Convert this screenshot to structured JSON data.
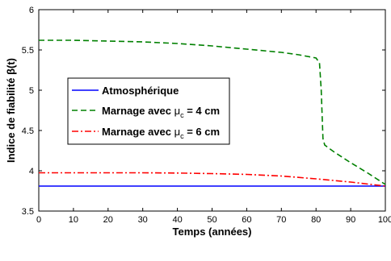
{
  "chart_data": {
    "type": "line",
    "xlabel": "Temps (années)",
    "ylabel": "Indice de fiabilité β(t)",
    "xlim": [
      0,
      100
    ],
    "ylim": [
      3.5,
      6
    ],
    "xticks": [
      0,
      10,
      20,
      30,
      40,
      50,
      60,
      70,
      80,
      90,
      100
    ],
    "yticks": [
      3.5,
      4,
      4.5,
      5,
      5.5,
      6
    ],
    "ytick_labels": [
      "3.5",
      "4",
      "4.5",
      "5",
      "5.5",
      "6"
    ],
    "grid": false,
    "legend_position": "left",
    "series": [
      {
        "name": "Atmosphérique",
        "color": "#0000ff",
        "dash": "solid",
        "x": [
          0,
          100
        ],
        "y": [
          3.81,
          3.81
        ]
      },
      {
        "name": "Marnage avec μc = 4 cm",
        "name_base": "Marnage avec ",
        "name_symbol": "μ",
        "name_sub": "c",
        "name_suffix": " = 4 cm",
        "color": "#008000",
        "dash": "dashed",
        "x": [
          0,
          10,
          20,
          30,
          40,
          50,
          60,
          70,
          75,
          80,
          81,
          81.5,
          82,
          82.5,
          85,
          90,
          95,
          100
        ],
        "y": [
          5.62,
          5.62,
          5.61,
          5.6,
          5.58,
          5.55,
          5.51,
          5.47,
          5.44,
          5.4,
          5.34,
          5.0,
          4.4,
          4.32,
          4.24,
          4.1,
          3.97,
          3.83
        ]
      },
      {
        "name": "Marnage avec μc = 6 cm",
        "name_base": "Marnage avec ",
        "name_symbol": "μ",
        "name_sub": "c",
        "name_suffix": " = 6 cm",
        "color": "#ff0000",
        "dash": "dashdot",
        "x": [
          0,
          10,
          20,
          30,
          40,
          50,
          60,
          70,
          80,
          85,
          90,
          95,
          100
        ],
        "y": [
          3.975,
          3.975,
          3.975,
          3.975,
          3.972,
          3.965,
          3.955,
          3.935,
          3.9,
          3.88,
          3.86,
          3.835,
          3.81
        ]
      }
    ]
  }
}
